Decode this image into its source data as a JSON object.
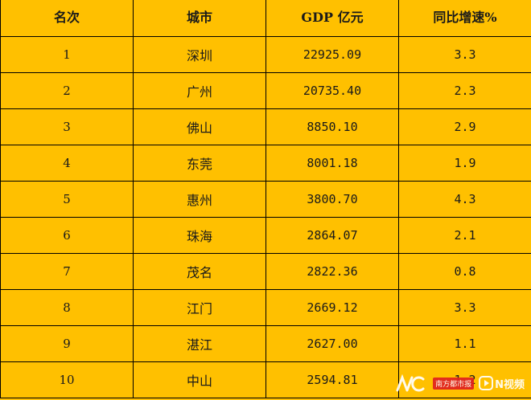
{
  "table": {
    "headers": [
      "名次",
      "城市",
      "GDP 亿元",
      "同比增速%"
    ],
    "rows": [
      {
        "rank": "1",
        "city": "深圳",
        "gdp": "22925.09",
        "growth": "3.3"
      },
      {
        "rank": "2",
        "city": "广州",
        "gdp": "20735.40",
        "growth": "2.3"
      },
      {
        "rank": "3",
        "city": "佛山",
        "gdp": "8850.10",
        "growth": "2.9"
      },
      {
        "rank": "4",
        "city": "东莞",
        "gdp": "8001.18",
        "growth": "1.9"
      },
      {
        "rank": "5",
        "city": "惠州",
        "gdp": "3800.70",
        "growth": "4.3"
      },
      {
        "rank": "6",
        "city": "珠海",
        "gdp": "2864.07",
        "growth": "2.1"
      },
      {
        "rank": "7",
        "city": "茂名",
        "gdp": "2822.36",
        "growth": "0.8"
      },
      {
        "rank": "8",
        "city": "江门",
        "gdp": "2669.12",
        "growth": "3.3"
      },
      {
        "rank": "9",
        "city": "湛江",
        "gdp": "2627.00",
        "growth": "1.1"
      },
      {
        "rank": "10",
        "city": "中山",
        "gdp": "2594.81",
        "growth": "1.2"
      }
    ]
  },
  "colors": {
    "cell_background": "#FFC000",
    "grid_lines": "#000000"
  },
  "watermark": {
    "badge": "南方都市报",
    "brand": "N视频"
  }
}
